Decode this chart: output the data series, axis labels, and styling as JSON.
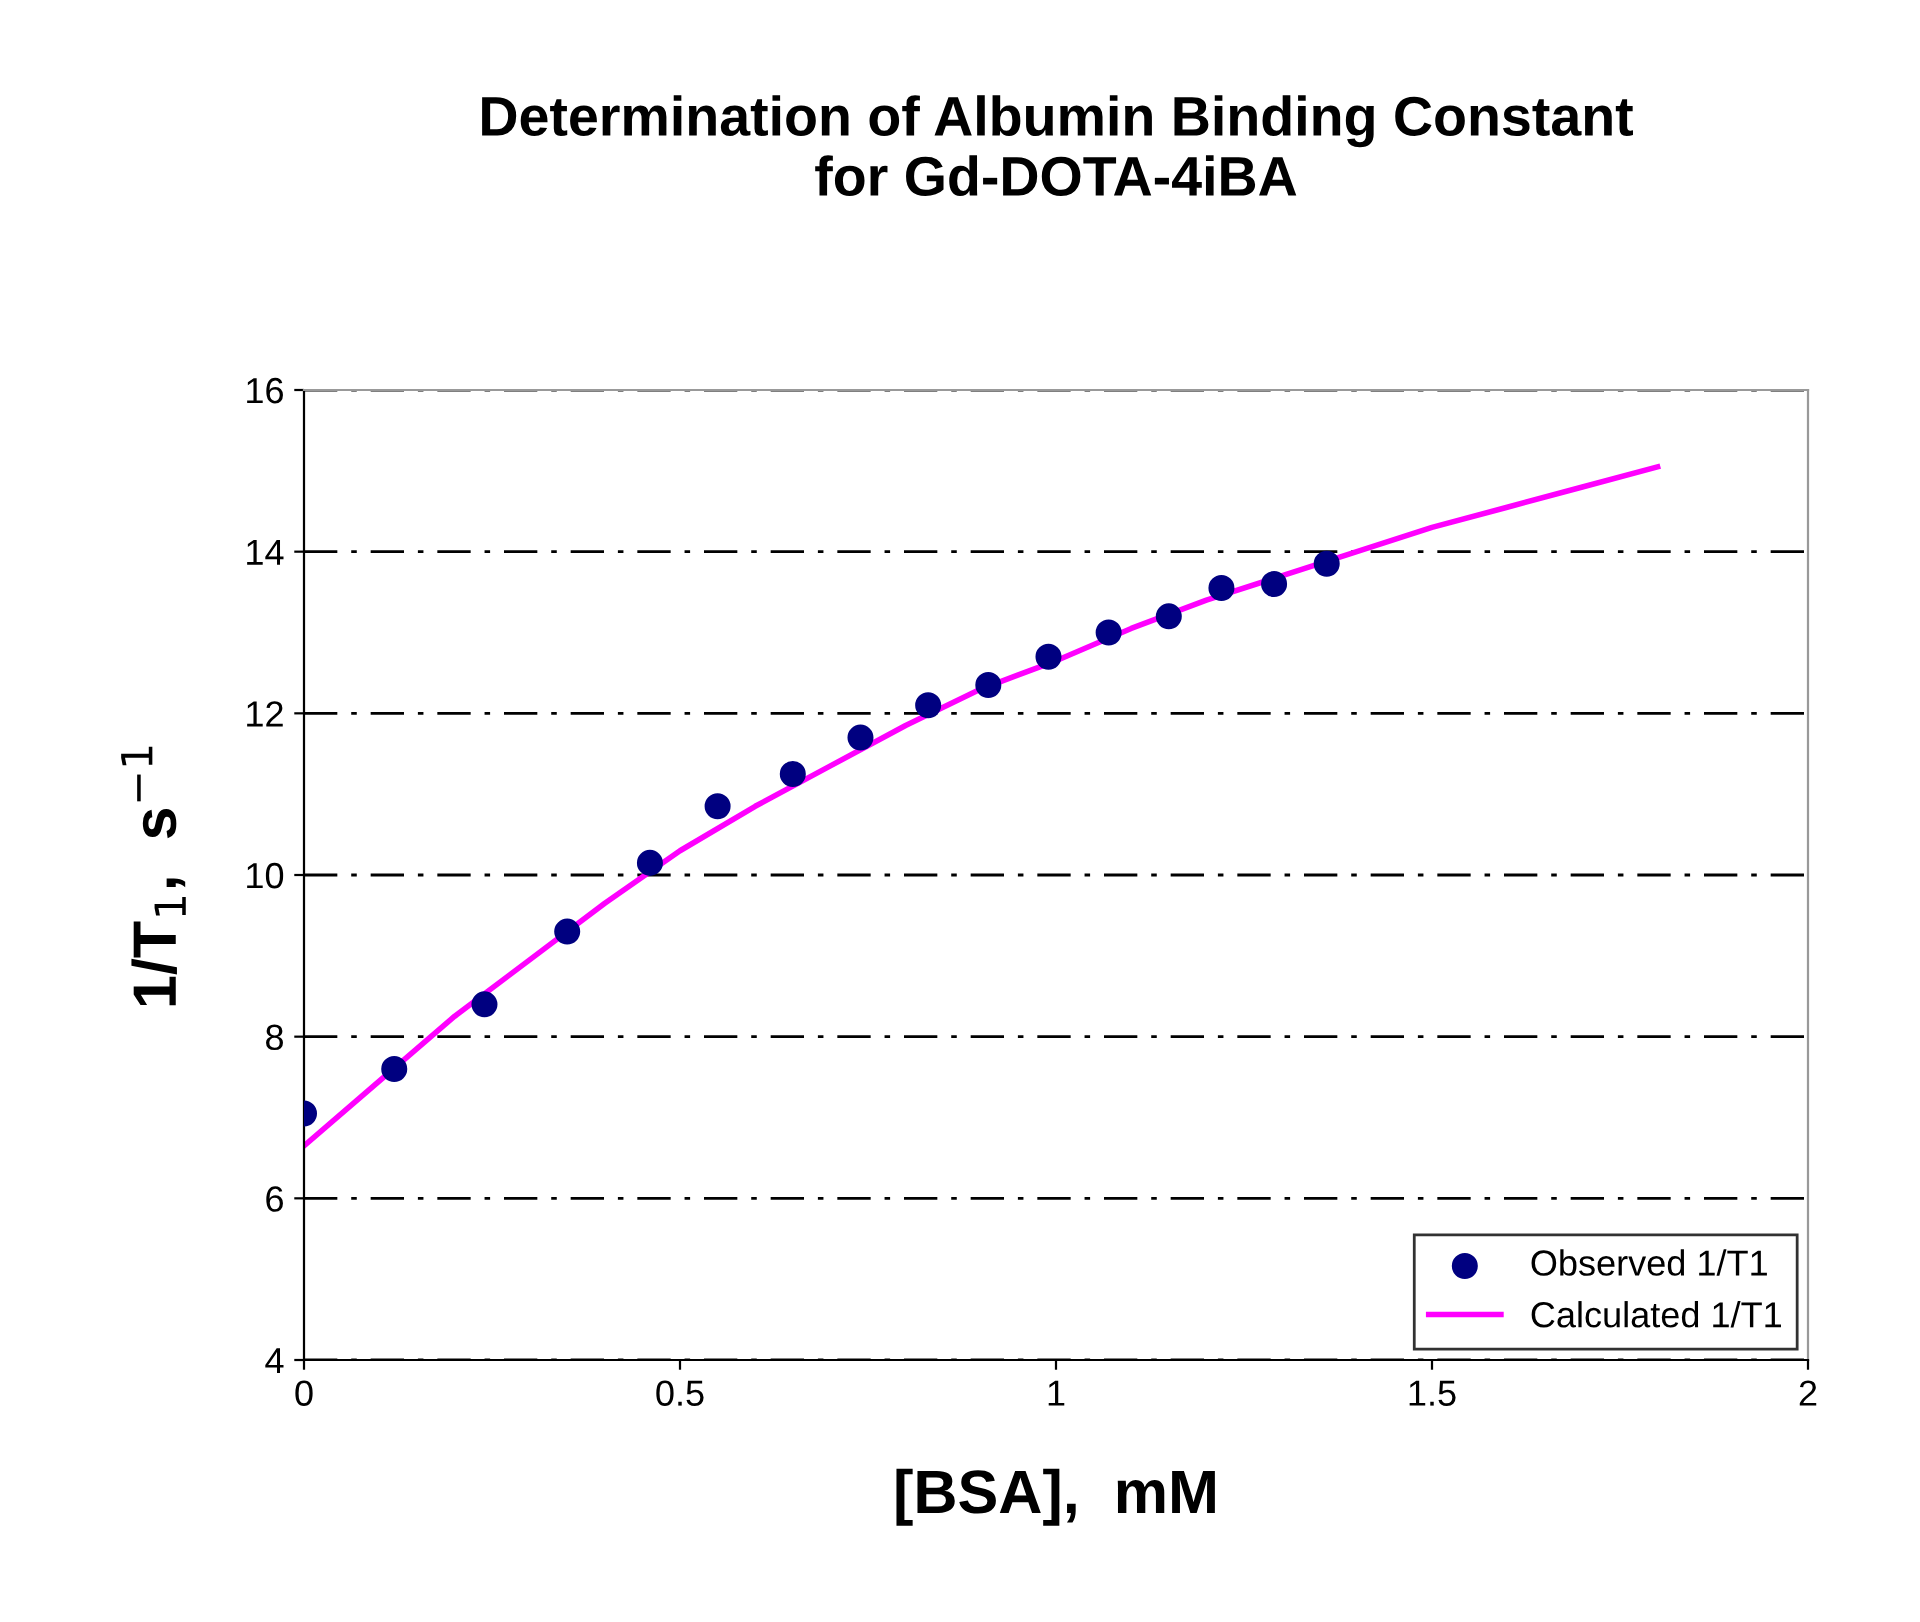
{
  "chart_data": {
    "type": "scatter",
    "title": "Determination of Albumin Binding Constant\nfor Gd-DOTA-4iBA",
    "xlabel": "[BSA],  mM",
    "ylabel": "1/T$_{1}$,  s$^{−1}$",
    "xlim": [
      0,
      2
    ],
    "xticks": [
      0,
      0.5,
      1,
      1.5,
      2
    ],
    "ylim": [
      4,
      16
    ],
    "yticks": [
      4,
      6,
      8,
      10,
      12,
      14,
      16
    ],
    "grid": "y",
    "legend": "bottom right",
    "series": [
      {
        "name": "Observed 1/T1",
        "color": "#000080",
        "marker": "circle",
        "x": [
          0,
          0.12,
          0.24,
          0.35,
          0.46,
          0.55,
          0.65,
          0.74,
          0.83,
          0.91,
          0.99,
          1.07,
          1.15,
          1.22,
          1.29,
          1.36
        ],
        "values": [
          7.05,
          7.6,
          8.4,
          9.3,
          10.15,
          10.85,
          11.25,
          11.7,
          12.1,
          12.35,
          12.7,
          13.0,
          13.2,
          13.55,
          13.6,
          13.85
        ]
      },
      {
        "name": "Calculated 1/T1",
        "type": "line",
        "color": "#ff00ff",
        "line_style": "solid",
        "x": [
          0,
          0.1,
          0.2,
          0.3,
          0.4,
          0.5,
          0.6,
          0.7,
          0.8,
          0.9,
          1.0,
          1.1,
          1.2,
          1.3,
          1.4,
          1.5,
          1.6,
          1.7,
          1.8
        ],
        "values": [
          6.65,
          7.45,
          8.25,
          8.95,
          9.65,
          10.3,
          10.85,
          11.35,
          11.85,
          12.3,
          12.65,
          13.05,
          13.4,
          13.7,
          14.0,
          14.3,
          14.55,
          14.8,
          15.05
        ]
      }
    ]
  }
}
